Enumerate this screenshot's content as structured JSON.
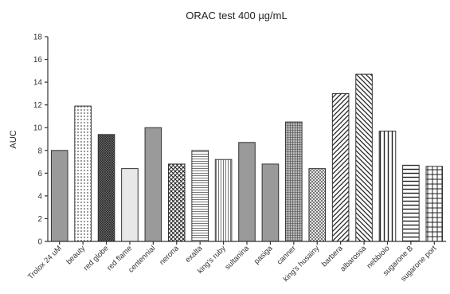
{
  "chart_data": {
    "type": "bar",
    "title": "ORAC test 400 µg/mL",
    "xlabel": "",
    "ylabel": "AUC",
    "ylim": [
      0,
      18
    ],
    "yticks": [
      0,
      2,
      4,
      6,
      8,
      10,
      12,
      14,
      16,
      18
    ],
    "grid": false,
    "legend": "none",
    "categories": [
      "Trolox 24 uM",
      "beauty",
      "red globe",
      "red flame",
      "centennial",
      "nerona",
      "exalta",
      "king's ruby",
      "sultanina",
      "pasiga",
      "canner",
      "king's husainy",
      "barbera",
      "albarossa",
      "nebbiolo",
      "sugarone B",
      "sugarone port"
    ],
    "values": [
      8.0,
      11.9,
      9.4,
      6.4,
      10.0,
      6.8,
      8.0,
      7.2,
      8.7,
      6.8,
      10.5,
      6.4,
      13.0,
      14.7,
      9.7,
      6.7,
      6.6
    ],
    "patterns": [
      "solid-gray",
      "dots",
      "dense-crosshatch",
      "solid-light",
      "solid-gray",
      "diamond-crosshatch",
      "horizontal-fine",
      "vertical-fine",
      "solid-gray",
      "solid-gray",
      "grid-fine",
      "diamond-small",
      "diagonal-right",
      "diagonal-left",
      "vertical-wide",
      "horizontal-wide",
      "grid-wide"
    ]
  }
}
